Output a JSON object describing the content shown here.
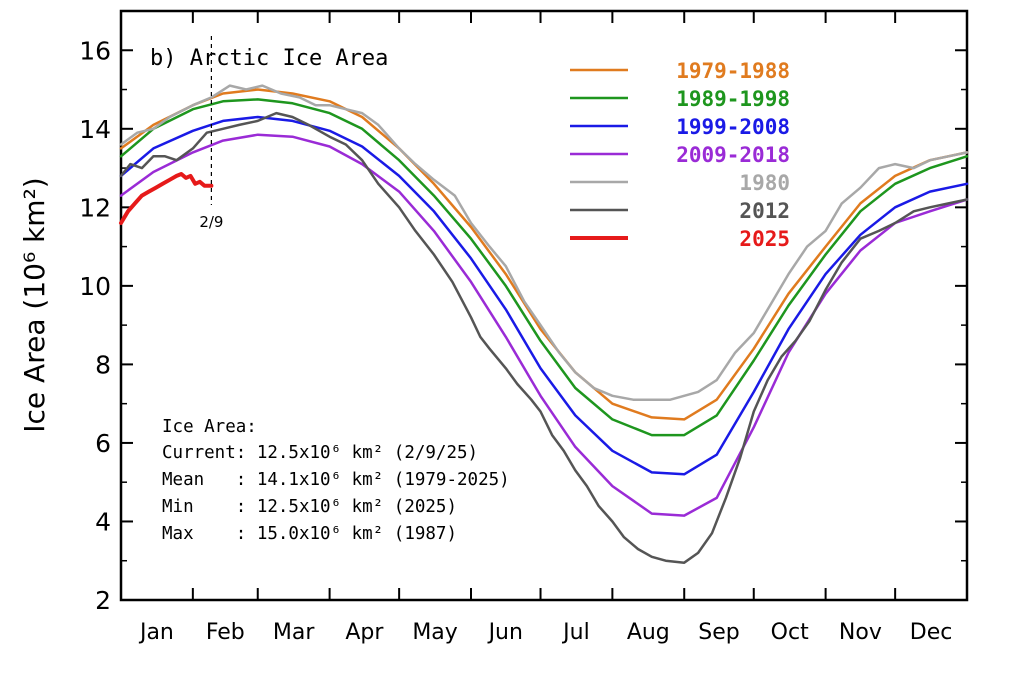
{
  "chart_data": {
    "type": "line",
    "title": "b) Arctic Ice Area",
    "ylabel": "Ice Area (10⁶ km²)",
    "xlabel": "",
    "ylim": [
      2,
      17
    ],
    "yticks": [
      2,
      4,
      6,
      8,
      10,
      12,
      14,
      16
    ],
    "xlim": [
      1,
      366
    ],
    "months": [
      {
        "label": "Jan",
        "start": 1
      },
      {
        "label": "Feb",
        "start": 32
      },
      {
        "label": "Mar",
        "start": 60
      },
      {
        "label": "Apr",
        "start": 91
      },
      {
        "label": "May",
        "start": 121
      },
      {
        "label": "Jun",
        "start": 152
      },
      {
        "label": "Jul",
        "start": 182
      },
      {
        "label": "Aug",
        "start": 213
      },
      {
        "label": "Sep",
        "start": 244
      },
      {
        "label": "Oct",
        "start": 274
      },
      {
        "label": "Nov",
        "start": 305
      },
      {
        "label": "Dec",
        "start": 335
      }
    ],
    "marker": {
      "day": 40,
      "label": "2/9"
    },
    "grid": false,
    "legend_position": "top-right",
    "series": [
      {
        "name": "1979-1988",
        "color": "#E07B1F",
        "width": 2.5,
        "points": [
          [
            1,
            13.5
          ],
          [
            15,
            14.1
          ],
          [
            32,
            14.6
          ],
          [
            45,
            14.9
          ],
          [
            60,
            15.0
          ],
          [
            75,
            14.9
          ],
          [
            91,
            14.7
          ],
          [
            105,
            14.3
          ],
          [
            121,
            13.5
          ],
          [
            136,
            12.6
          ],
          [
            152,
            11.5
          ],
          [
            167,
            10.3
          ],
          [
            182,
            8.9
          ],
          [
            197,
            7.8
          ],
          [
            213,
            7.0
          ],
          [
            230,
            6.65
          ],
          [
            244,
            6.6
          ],
          [
            258,
            7.1
          ],
          [
            274,
            8.4
          ],
          [
            289,
            9.8
          ],
          [
            305,
            11.0
          ],
          [
            320,
            12.1
          ],
          [
            335,
            12.8
          ],
          [
            350,
            13.2
          ],
          [
            366,
            13.4
          ]
        ]
      },
      {
        "name": "1989-1998",
        "color": "#1E961E",
        "width": 2.5,
        "points": [
          [
            1,
            13.3
          ],
          [
            15,
            14.0
          ],
          [
            32,
            14.5
          ],
          [
            45,
            14.7
          ],
          [
            60,
            14.75
          ],
          [
            75,
            14.65
          ],
          [
            91,
            14.4
          ],
          [
            105,
            14.0
          ],
          [
            121,
            13.2
          ],
          [
            136,
            12.3
          ],
          [
            152,
            11.2
          ],
          [
            167,
            10.0
          ],
          [
            182,
            8.6
          ],
          [
            197,
            7.4
          ],
          [
            213,
            6.6
          ],
          [
            230,
            6.2
          ],
          [
            244,
            6.2
          ],
          [
            258,
            6.7
          ],
          [
            274,
            8.1
          ],
          [
            289,
            9.5
          ],
          [
            305,
            10.8
          ],
          [
            320,
            11.9
          ],
          [
            335,
            12.6
          ],
          [
            350,
            13.0
          ],
          [
            366,
            13.3
          ]
        ]
      },
      {
        "name": "1999-2008",
        "color": "#1A1AE6",
        "width": 2.5,
        "points": [
          [
            1,
            12.8
          ],
          [
            15,
            13.5
          ],
          [
            32,
            13.95
          ],
          [
            45,
            14.2
          ],
          [
            60,
            14.3
          ],
          [
            75,
            14.2
          ],
          [
            91,
            13.95
          ],
          [
            105,
            13.55
          ],
          [
            121,
            12.8
          ],
          [
            136,
            11.9
          ],
          [
            152,
            10.7
          ],
          [
            167,
            9.4
          ],
          [
            182,
            7.9
          ],
          [
            197,
            6.7
          ],
          [
            213,
            5.8
          ],
          [
            230,
            5.25
          ],
          [
            244,
            5.2
          ],
          [
            258,
            5.7
          ],
          [
            274,
            7.3
          ],
          [
            289,
            8.9
          ],
          [
            305,
            10.3
          ],
          [
            320,
            11.3
          ],
          [
            335,
            12.0
          ],
          [
            350,
            12.4
          ],
          [
            366,
            12.6
          ]
        ]
      },
      {
        "name": "2009-2018",
        "color": "#9A2BD6",
        "width": 2.5,
        "points": [
          [
            1,
            12.3
          ],
          [
            15,
            12.9
          ],
          [
            32,
            13.4
          ],
          [
            45,
            13.7
          ],
          [
            60,
            13.85
          ],
          [
            75,
            13.8
          ],
          [
            91,
            13.55
          ],
          [
            105,
            13.1
          ],
          [
            121,
            12.4
          ],
          [
            136,
            11.4
          ],
          [
            152,
            10.1
          ],
          [
            167,
            8.7
          ],
          [
            182,
            7.2
          ],
          [
            197,
            5.9
          ],
          [
            213,
            4.9
          ],
          [
            230,
            4.2
          ],
          [
            244,
            4.15
          ],
          [
            258,
            4.6
          ],
          [
            274,
            6.4
          ],
          [
            289,
            8.3
          ],
          [
            305,
            9.8
          ],
          [
            320,
            10.9
          ],
          [
            335,
            11.6
          ],
          [
            350,
            11.9
          ],
          [
            366,
            12.2
          ]
        ]
      },
      {
        "name": "1980",
        "color": "#A8A8A8",
        "width": 2.5,
        "points": [
          [
            1,
            13.6
          ],
          [
            8,
            13.9
          ],
          [
            15,
            14.0
          ],
          [
            22,
            14.3
          ],
          [
            32,
            14.6
          ],
          [
            40,
            14.8
          ],
          [
            48,
            15.1
          ],
          [
            55,
            15.0
          ],
          [
            62,
            15.1
          ],
          [
            70,
            14.9
          ],
          [
            78,
            14.8
          ],
          [
            85,
            14.6
          ],
          [
            91,
            14.6
          ],
          [
            98,
            14.5
          ],
          [
            105,
            14.4
          ],
          [
            112,
            14.1
          ],
          [
            121,
            13.5
          ],
          [
            128,
            13.1
          ],
          [
            136,
            12.7
          ],
          [
            145,
            12.3
          ],
          [
            152,
            11.6
          ],
          [
            160,
            11.0
          ],
          [
            167,
            10.5
          ],
          [
            175,
            9.6
          ],
          [
            182,
            9.0
          ],
          [
            190,
            8.3
          ],
          [
            197,
            7.8
          ],
          [
            205,
            7.4
          ],
          [
            213,
            7.2
          ],
          [
            222,
            7.1
          ],
          [
            230,
            7.1
          ],
          [
            238,
            7.1
          ],
          [
            244,
            7.2
          ],
          [
            250,
            7.3
          ],
          [
            258,
            7.6
          ],
          [
            266,
            8.3
          ],
          [
            274,
            8.8
          ],
          [
            282,
            9.6
          ],
          [
            289,
            10.3
          ],
          [
            297,
            11.0
          ],
          [
            305,
            11.4
          ],
          [
            312,
            12.1
          ],
          [
            320,
            12.5
          ],
          [
            328,
            13.0
          ],
          [
            335,
            13.1
          ],
          [
            343,
            13.0
          ],
          [
            350,
            13.2
          ],
          [
            358,
            13.3
          ],
          [
            366,
            13.4
          ]
        ]
      },
      {
        "name": "2012",
        "color": "#555555",
        "width": 2.5,
        "points": [
          [
            1,
            12.8
          ],
          [
            5,
            13.1
          ],
          [
            10,
            13.0
          ],
          [
            15,
            13.3
          ],
          [
            20,
            13.3
          ],
          [
            25,
            13.2
          ],
          [
            32,
            13.5
          ],
          [
            38,
            13.9
          ],
          [
            45,
            14.0
          ],
          [
            52,
            14.1
          ],
          [
            60,
            14.2
          ],
          [
            68,
            14.4
          ],
          [
            75,
            14.3
          ],
          [
            82,
            14.1
          ],
          [
            91,
            13.8
          ],
          [
            98,
            13.6
          ],
          [
            105,
            13.2
          ],
          [
            112,
            12.6
          ],
          [
            121,
            12.0
          ],
          [
            128,
            11.4
          ],
          [
            136,
            10.8
          ],
          [
            144,
            10.1
          ],
          [
            152,
            9.2
          ],
          [
            156,
            8.7
          ],
          [
            160,
            8.4
          ],
          [
            167,
            7.9
          ],
          [
            172,
            7.5
          ],
          [
            178,
            7.1
          ],
          [
            182,
            6.8
          ],
          [
            187,
            6.2
          ],
          [
            192,
            5.8
          ],
          [
            197,
            5.3
          ],
          [
            202,
            4.9
          ],
          [
            207,
            4.4
          ],
          [
            213,
            4.0
          ],
          [
            218,
            3.6
          ],
          [
            224,
            3.3
          ],
          [
            230,
            3.1
          ],
          [
            236,
            3.0
          ],
          [
            244,
            2.95
          ],
          [
            250,
            3.2
          ],
          [
            256,
            3.7
          ],
          [
            262,
            4.6
          ],
          [
            268,
            5.6
          ],
          [
            274,
            6.8
          ],
          [
            280,
            7.6
          ],
          [
            286,
            8.2
          ],
          [
            292,
            8.6
          ],
          [
            298,
            9.1
          ],
          [
            305,
            9.9
          ],
          [
            312,
            10.6
          ],
          [
            320,
            11.2
          ],
          [
            328,
            11.4
          ],
          [
            335,
            11.6
          ],
          [
            343,
            11.9
          ],
          [
            350,
            12.0
          ],
          [
            358,
            12.1
          ],
          [
            366,
            12.2
          ]
        ]
      },
      {
        "name": "2025",
        "color": "#E61A1A",
        "width": 4,
        "points": [
          [
            1,
            11.6
          ],
          [
            4,
            11.9
          ],
          [
            7,
            12.1
          ],
          [
            10,
            12.3
          ],
          [
            13,
            12.4
          ],
          [
            16,
            12.5
          ],
          [
            19,
            12.6
          ],
          [
            22,
            12.7
          ],
          [
            25,
            12.8
          ],
          [
            27,
            12.85
          ],
          [
            29,
            12.75
          ],
          [
            31,
            12.8
          ],
          [
            33,
            12.6
          ],
          [
            35,
            12.65
          ],
          [
            37,
            12.55
          ],
          [
            40,
            12.55
          ]
        ]
      }
    ]
  },
  "info": {
    "heading": "Ice Area:",
    "lines": [
      "Current: 12.5x10⁶ km² (2/9/25)",
      "Mean   : 14.1x10⁶ km² (1979-2025)",
      "Min    : 12.5x10⁶ km² (2025)",
      "Max    : 15.0x10⁶ km² (1987)"
    ]
  }
}
